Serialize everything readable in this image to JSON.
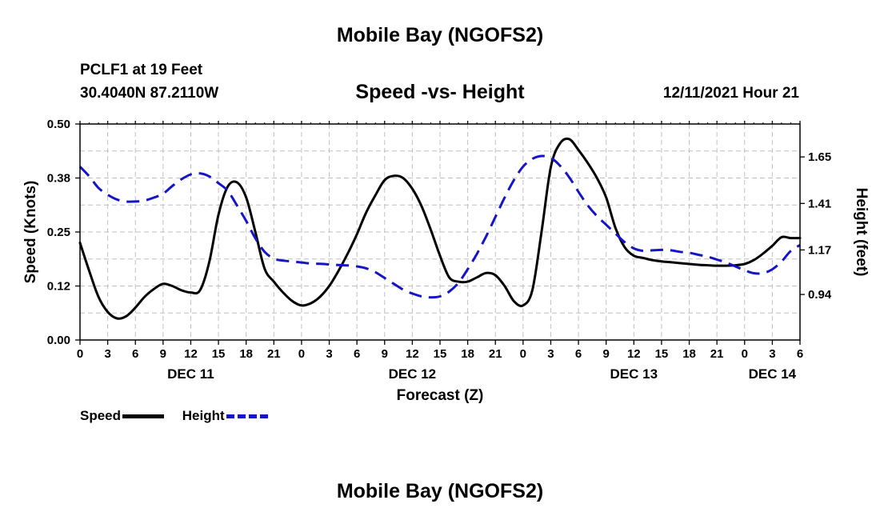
{
  "header": {
    "title": "Mobile Bay (NGOFS2)",
    "station": "PCLF1 at 19 Feet",
    "coords": "30.4040N  87.2110W",
    "subtitle": "Speed -vs- Height",
    "datetime": "12/11/2021 Hour 21"
  },
  "footer": {
    "title": "Mobile Bay (NGOFS2)"
  },
  "legend": {
    "speed_label": "Speed",
    "height_label": "Height"
  },
  "colors": {
    "speed": "#000000",
    "height": "#1414c8",
    "grid": "#c0c0c0"
  },
  "chart_data": {
    "type": "line",
    "title": "Speed -vs- Height",
    "xlabel": "Forecast (Z)",
    "ylabel": "Speed (Knots)",
    "y2label": "Height (feet)",
    "x_range_hours": [
      0,
      78
    ],
    "x_tick_labels": [
      "0",
      "3",
      "6",
      "9",
      "12",
      "15",
      "18",
      "21",
      "0",
      "3",
      "6",
      "9",
      "12",
      "15",
      "18",
      "21",
      "0",
      "3",
      "6",
      "9",
      "12",
      "15",
      "18",
      "21",
      "0",
      "3",
      "6"
    ],
    "day_labels": [
      {
        "label": "DEC 11",
        "hour": 12
      },
      {
        "label": "DEC 12",
        "hour": 36
      },
      {
        "label": "DEC 13",
        "hour": 60
      },
      {
        "label": "DEC 14",
        "hour": 75
      }
    ],
    "ylim": [
      0,
      0.5
    ],
    "y_tick_labels": [
      "0.00",
      "0.12",
      "0.25",
      "0.38",
      "0.50"
    ],
    "y_tick_values": [
      0,
      0.125,
      0.25,
      0.375,
      0.5
    ],
    "y2lim": [
      0.705,
      1.82
    ],
    "y2_tick_labels": [
      "0.94",
      "1.17",
      "1.41",
      "1.65"
    ],
    "y2_tick_values": [
      0.94,
      1.17,
      1.41,
      1.65
    ],
    "series": [
      {
        "name": "Speed",
        "axis": "left",
        "style": "solid",
        "x": [
          0,
          1,
          2,
          3,
          4,
          5,
          6,
          7,
          8,
          9,
          10,
          11,
          12,
          13,
          14,
          15,
          16,
          17,
          18,
          19,
          20,
          21,
          22,
          23,
          24,
          25,
          26,
          27,
          28,
          29,
          30,
          31,
          32,
          33,
          34,
          35,
          36,
          37,
          38,
          39,
          40,
          41,
          42,
          43,
          44,
          45,
          46,
          47,
          48,
          49,
          50,
          51,
          52,
          53,
          54,
          55,
          56,
          57,
          58,
          59,
          60,
          61,
          62,
          63,
          64,
          65,
          66,
          67,
          68,
          69,
          70,
          71,
          72,
          73,
          74,
          75,
          76,
          77,
          78
        ],
        "values": [
          0.225,
          0.16,
          0.1,
          0.065,
          0.05,
          0.055,
          0.075,
          0.1,
          0.118,
          0.13,
          0.125,
          0.115,
          0.11,
          0.115,
          0.18,
          0.29,
          0.355,
          0.365,
          0.33,
          0.25,
          0.165,
          0.135,
          0.11,
          0.09,
          0.08,
          0.085,
          0.1,
          0.125,
          0.16,
          0.2,
          0.245,
          0.295,
          0.335,
          0.37,
          0.38,
          0.375,
          0.35,
          0.31,
          0.255,
          0.195,
          0.145,
          0.135,
          0.135,
          0.145,
          0.155,
          0.15,
          0.125,
          0.09,
          0.08,
          0.115,
          0.25,
          0.4,
          0.455,
          0.465,
          0.44,
          0.41,
          0.375,
          0.33,
          0.26,
          0.215,
          0.195,
          0.19,
          0.185,
          0.182,
          0.18,
          0.178,
          0.176,
          0.174,
          0.173,
          0.172,
          0.172,
          0.173,
          0.176,
          0.185,
          0.2,
          0.218,
          0.238,
          0.236,
          0.236
        ]
      },
      {
        "name": "Height",
        "axis": "right",
        "style": "dashed",
        "x": [
          0,
          1,
          2,
          3,
          4,
          5,
          6,
          7,
          8,
          9,
          10,
          11,
          12,
          13,
          14,
          15,
          16,
          17,
          18,
          19,
          20,
          21,
          22,
          23,
          24,
          25,
          26,
          27,
          28,
          29,
          30,
          31,
          32,
          33,
          34,
          35,
          36,
          37,
          38,
          39,
          40,
          41,
          42,
          43,
          44,
          45,
          46,
          47,
          48,
          49,
          50,
          51,
          52,
          53,
          54,
          55,
          56,
          57,
          58,
          59,
          60,
          61,
          62,
          63,
          64,
          65,
          66,
          67,
          68,
          69,
          70,
          71,
          72,
          73,
          74,
          75,
          76,
          77,
          78
        ],
        "values": [
          1.6,
          1.55,
          1.49,
          1.455,
          1.43,
          1.42,
          1.42,
          1.425,
          1.44,
          1.46,
          1.5,
          1.535,
          1.56,
          1.565,
          1.55,
          1.515,
          1.475,
          1.4,
          1.32,
          1.23,
          1.16,
          1.125,
          1.115,
          1.11,
          1.105,
          1.1,
          1.098,
          1.095,
          1.092,
          1.09,
          1.085,
          1.075,
          1.055,
          1.025,
          0.995,
          0.965,
          0.945,
          0.93,
          0.925,
          0.93,
          0.955,
          1.0,
          1.07,
          1.15,
          1.24,
          1.34,
          1.44,
          1.53,
          1.6,
          1.64,
          1.655,
          1.645,
          1.605,
          1.545,
          1.47,
          1.4,
          1.345,
          1.3,
          1.255,
          1.21,
          1.178,
          1.165,
          1.168,
          1.17,
          1.168,
          1.16,
          1.155,
          1.145,
          1.135,
          1.12,
          1.105,
          1.085,
          1.065,
          1.05,
          1.05,
          1.07,
          1.11,
          1.165,
          1.195
        ]
      }
    ],
    "grid": true,
    "legend_position": "bottom-left"
  }
}
